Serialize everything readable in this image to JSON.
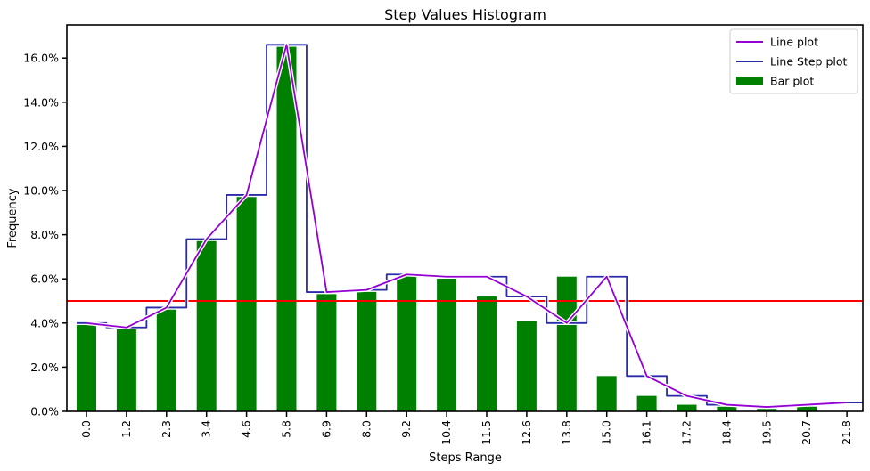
{
  "chart_data": {
    "type": "bar",
    "title": "Step Values Histogram",
    "xlabel": "Steps Range",
    "ylabel": "Frequency",
    "categories": [
      "0.0",
      "1.2",
      "2.3",
      "3.4",
      "4.6",
      "5.8",
      "6.9",
      "8.0",
      "9.2",
      "10.4",
      "11.5",
      "12.6",
      "13.8",
      "15.0",
      "16.1",
      "17.2",
      "18.4",
      "19.5",
      "20.7",
      "21.8"
    ],
    "ylim": [
      0,
      17.5
    ],
    "yticks": [
      "0.0%",
      "2.0%",
      "4.0%",
      "6.0%",
      "8.0%",
      "10.0%",
      "12.0%",
      "14.0%",
      "16.0%"
    ],
    "series": [
      {
        "name": "Line plot",
        "kind": "line",
        "color": "#9400D3",
        "values": [
          4.0,
          3.8,
          4.7,
          7.8,
          9.8,
          16.6,
          5.4,
          5.5,
          6.2,
          6.1,
          6.1,
          5.2,
          4.0,
          6.1,
          1.6,
          0.7,
          0.3,
          0.2,
          0.3,
          0.4
        ]
      },
      {
        "name": "Line Step plot",
        "kind": "step",
        "color": "#2B2BAA",
        "values": [
          4.0,
          3.8,
          4.7,
          7.8,
          9.8,
          16.6,
          5.4,
          5.5,
          6.2,
          6.1,
          6.1,
          5.2,
          4.0,
          6.1,
          1.6,
          0.7,
          0.3,
          0.2,
          0.3,
          0.4
        ]
      },
      {
        "name": "Bar plot",
        "kind": "bar",
        "color": "#008000",
        "values": [
          4.0,
          3.8,
          4.7,
          7.8,
          9.8,
          16.6,
          5.4,
          5.5,
          6.2,
          6.1,
          5.2,
          4.1,
          6.1,
          1.6,
          0.7,
          0.3,
          0.35,
          0.15,
          0.25,
          0.0
        ]
      }
    ],
    "reference_line": {
      "value": 5.0,
      "color": "#FF0000"
    },
    "legend_position": "top-right",
    "grid": false
  }
}
